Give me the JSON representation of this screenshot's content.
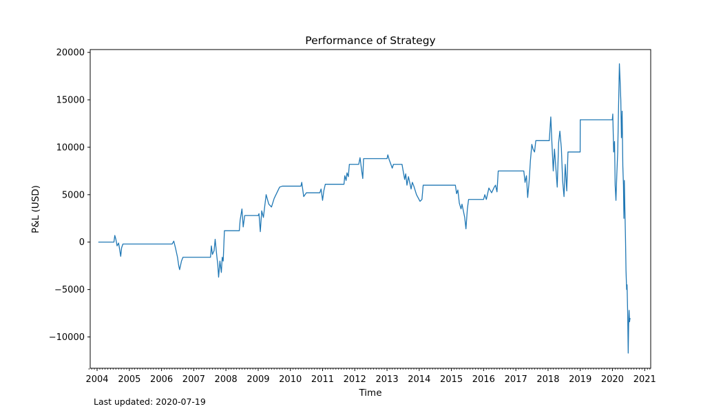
{
  "chart_data": {
    "type": "line",
    "title": "Performance of Strategy",
    "xlabel": "Time",
    "ylabel": "P&L (USD)",
    "x_type": "date",
    "xlim": [
      "2003-10-15",
      "2021-03-10"
    ],
    "ylim": [
      -13300,
      20300
    ],
    "y_ticks": [
      -10000,
      -5000,
      0,
      5000,
      10000,
      15000,
      20000
    ],
    "y_tick_labels": [
      "−10000",
      "−5000",
      "0",
      "5000",
      "10000",
      "15000",
      "20000"
    ],
    "x_ticks": [
      "2004-01-01",
      "2005-01-01",
      "2006-01-01",
      "2007-01-01",
      "2008-01-01",
      "2009-01-01",
      "2010-01-01",
      "2011-01-01",
      "2012-01-01",
      "2013-01-01",
      "2014-01-01",
      "2015-01-01",
      "2016-01-01",
      "2017-01-01",
      "2018-01-01",
      "2019-01-01",
      "2020-01-01",
      "2021-01-01"
    ],
    "x_tick_labels": [
      "2004",
      "2005",
      "2006",
      "2007",
      "2008",
      "2009",
      "2010",
      "2011",
      "2012",
      "2013",
      "2014",
      "2015",
      "2016",
      "2017",
      "2018",
      "2019",
      "2020",
      "2021"
    ],
    "minor_x_ticks": "monthly",
    "grid": false,
    "legend": "none",
    "color": "#1f77b4",
    "series": [
      {
        "points": [
          [
            "2004-01-15",
            0
          ],
          [
            "2004-07-10",
            0
          ],
          [
            "2004-07-20",
            700
          ],
          [
            "2004-08-01",
            300
          ],
          [
            "2004-08-15",
            -400
          ],
          [
            "2004-09-01",
            -100
          ],
          [
            "2004-09-15",
            -900
          ],
          [
            "2004-09-25",
            -1500
          ],
          [
            "2004-10-05",
            -600
          ],
          [
            "2004-10-20",
            -200
          ],
          [
            "2006-05-01",
            -200
          ],
          [
            "2006-05-20",
            100
          ],
          [
            "2006-06-10",
            -700
          ],
          [
            "2006-07-01",
            -1600
          ],
          [
            "2006-07-15",
            -2500
          ],
          [
            "2006-07-25",
            -2900
          ],
          [
            "2006-08-15",
            -2000
          ],
          [
            "2006-09-01",
            -1600
          ],
          [
            "2007-07-10",
            -1600
          ],
          [
            "2007-07-20",
            -400
          ],
          [
            "2007-08-01",
            -1300
          ],
          [
            "2007-08-20",
            -900
          ],
          [
            "2007-09-01",
            300
          ],
          [
            "2007-09-20",
            -1500
          ],
          [
            "2007-10-01",
            -2400
          ],
          [
            "2007-10-10",
            -3700
          ],
          [
            "2007-10-25",
            -2000
          ],
          [
            "2007-11-10",
            -3200
          ],
          [
            "2007-11-20",
            -1600
          ],
          [
            "2007-12-01",
            -2000
          ],
          [
            "2007-12-15",
            1200
          ],
          [
            "2008-06-01",
            1200
          ],
          [
            "2008-06-10",
            2300
          ],
          [
            "2008-07-01",
            3500
          ],
          [
            "2008-07-15",
            1600
          ],
          [
            "2008-08-01",
            2800
          ],
          [
            "2009-01-01",
            2800
          ],
          [
            "2009-01-10",
            3000
          ],
          [
            "2009-01-25",
            1100
          ],
          [
            "2009-02-10",
            3300
          ],
          [
            "2009-03-01",
            2600
          ],
          [
            "2009-04-01",
            5000
          ],
          [
            "2009-05-01",
            4000
          ],
          [
            "2009-06-01",
            3700
          ],
          [
            "2009-07-01",
            4600
          ],
          [
            "2009-08-01",
            5200
          ],
          [
            "2009-09-01",
            5800
          ],
          [
            "2009-10-01",
            5900
          ],
          [
            "2010-05-01",
            5900
          ],
          [
            "2010-05-10",
            6300
          ],
          [
            "2010-06-01",
            4800
          ],
          [
            "2010-07-01",
            5200
          ],
          [
            "2010-12-01",
            5200
          ],
          [
            "2010-12-15",
            5600
          ],
          [
            "2011-01-01",
            4400
          ],
          [
            "2011-01-15",
            5400
          ],
          [
            "2011-02-01",
            6100
          ],
          [
            "2011-09-01",
            6100
          ],
          [
            "2011-09-10",
            7000
          ],
          [
            "2011-09-25",
            6500
          ],
          [
            "2011-10-05",
            7300
          ],
          [
            "2011-10-20",
            6900
          ],
          [
            "2011-11-01",
            8200
          ],
          [
            "2012-02-15",
            8200
          ],
          [
            "2012-03-01",
            8900
          ],
          [
            "2012-03-20",
            7500
          ],
          [
            "2012-04-01",
            6700
          ],
          [
            "2012-04-10",
            8800
          ],
          [
            "2013-01-01",
            8800
          ],
          [
            "2013-01-10",
            9200
          ],
          [
            "2013-01-25",
            8700
          ],
          [
            "2013-02-10",
            8300
          ],
          [
            "2013-03-01",
            7800
          ],
          [
            "2013-03-15",
            8200
          ],
          [
            "2013-06-20",
            8200
          ],
          [
            "2013-07-01",
            7600
          ],
          [
            "2013-07-20",
            6600
          ],
          [
            "2013-08-01",
            7200
          ],
          [
            "2013-08-15",
            6000
          ],
          [
            "2013-09-01",
            6900
          ],
          [
            "2013-10-01",
            5600
          ],
          [
            "2013-10-15",
            6300
          ],
          [
            "2013-11-01",
            5900
          ],
          [
            "2013-12-01",
            5000
          ],
          [
            "2014-01-10",
            4300
          ],
          [
            "2014-02-01",
            4500
          ],
          [
            "2014-02-15",
            6000
          ],
          [
            "2015-02-15",
            6000
          ],
          [
            "2015-03-01",
            5100
          ],
          [
            "2015-03-15",
            5500
          ],
          [
            "2015-04-01",
            4100
          ],
          [
            "2015-04-20",
            3500
          ],
          [
            "2015-05-01",
            4000
          ],
          [
            "2015-06-01",
            2600
          ],
          [
            "2015-06-15",
            1400
          ],
          [
            "2015-07-01",
            3500
          ],
          [
            "2015-07-15",
            4500
          ],
          [
            "2016-01-01",
            4500
          ],
          [
            "2016-01-15",
            5000
          ],
          [
            "2016-02-01",
            4500
          ],
          [
            "2016-03-01",
            5700
          ],
          [
            "2016-04-01",
            5200
          ],
          [
            "2016-05-01",
            5800
          ],
          [
            "2016-05-15",
            6000
          ],
          [
            "2016-06-01",
            5300
          ],
          [
            "2016-06-15",
            7500
          ],
          [
            "2017-04-01",
            7500
          ],
          [
            "2017-04-15",
            6300
          ],
          [
            "2017-05-01",
            7000
          ],
          [
            "2017-05-15",
            4700
          ],
          [
            "2017-06-01",
            6500
          ],
          [
            "2017-06-15",
            8600
          ],
          [
            "2017-07-01",
            10300
          ],
          [
            "2017-07-15",
            9800
          ],
          [
            "2017-08-01",
            9500
          ],
          [
            "2017-08-15",
            10700
          ],
          [
            "2018-01-15",
            10700
          ],
          [
            "2018-02-01",
            13200
          ],
          [
            "2018-02-15",
            10200
          ],
          [
            "2018-03-01",
            7500
          ],
          [
            "2018-03-15",
            9800
          ],
          [
            "2018-04-01",
            7600
          ],
          [
            "2018-04-15",
            5800
          ],
          [
            "2018-05-01",
            10500
          ],
          [
            "2018-05-15",
            11700
          ],
          [
            "2018-06-01",
            9900
          ],
          [
            "2018-06-15",
            6500
          ],
          [
            "2018-07-01",
            4800
          ],
          [
            "2018-07-15",
            8200
          ],
          [
            "2018-08-01",
            5400
          ],
          [
            "2018-08-15",
            9500
          ],
          [
            "2018-12-31",
            9500
          ],
          [
            "2019-01-01",
            12900
          ],
          [
            "2019-12-31",
            12900
          ],
          [
            "2020-01-05",
            13500
          ],
          [
            "2020-01-15",
            9500
          ],
          [
            "2020-01-25",
            10600
          ],
          [
            "2020-02-01",
            6000
          ],
          [
            "2020-02-10",
            4400
          ],
          [
            "2020-02-20",
            7200
          ],
          [
            "2020-03-01",
            9500
          ],
          [
            "2020-03-10",
            14000
          ],
          [
            "2020-03-20",
            18800
          ],
          [
            "2020-03-28",
            17000
          ],
          [
            "2020-04-05",
            15000
          ],
          [
            "2020-04-12",
            11000
          ],
          [
            "2020-04-20",
            13800
          ],
          [
            "2020-04-28",
            8000
          ],
          [
            "2020-05-05",
            6000
          ],
          [
            "2020-05-10",
            2500
          ],
          [
            "2020-05-15",
            6500
          ],
          [
            "2020-05-22",
            3200
          ],
          [
            "2020-05-28",
            500
          ],
          [
            "2020-06-03",
            -3000
          ],
          [
            "2020-06-10",
            -5000
          ],
          [
            "2020-06-15",
            -4500
          ],
          [
            "2020-06-22",
            -7500
          ],
          [
            "2020-06-28",
            -11700
          ],
          [
            "2020-07-03",
            -8700
          ],
          [
            "2020-07-08",
            -7200
          ],
          [
            "2020-07-13",
            -8400
          ],
          [
            "2020-07-19",
            -8000
          ]
        ]
      }
    ]
  },
  "footnote": "Last updated: 2020-07-19"
}
